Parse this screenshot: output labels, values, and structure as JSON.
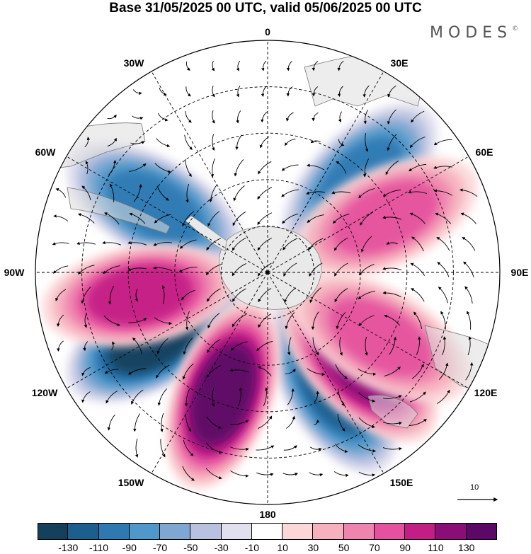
{
  "title": "Base 31/05/2025 00 UTC, valid 05/06/2025 00 UTC",
  "brand": "MODES",
  "brand_mark": "©",
  "longitude_labels": [
    "0",
    "30E",
    "60E",
    "90E",
    "120E",
    "150E",
    "180",
    "150W",
    "120W",
    "90W",
    "60W",
    "30W"
  ],
  "colorbar": {
    "ticks": [
      "-130",
      "-110",
      "-90",
      "-70",
      "-50",
      "-30",
      "-10",
      "10",
      "30",
      "50",
      "70",
      "90",
      "110",
      "130"
    ],
    "colors": [
      "#15405c",
      "#1c5f8e",
      "#2f79b3",
      "#4f98c9",
      "#7fa7d2",
      "#b8c1df",
      "#e1e0ee",
      "#ffffff",
      "#fbd7d9",
      "#f6b0be",
      "#ef85ae",
      "#e4519e",
      "#c21e85",
      "#8a0d78",
      "#5b0866"
    ]
  },
  "reference_vector": {
    "label": "10",
    "icon": "arrow-right-icon"
  },
  "anomaly_features": [
    {
      "sign": "negative",
      "level": -130,
      "near": "120W"
    },
    {
      "sign": "negative",
      "level": -110,
      "near": "150E"
    },
    {
      "sign": "negative",
      "level": -90,
      "near": "60W"
    },
    {
      "sign": "negative",
      "level": -90,
      "near": "45E"
    },
    {
      "sign": "positive",
      "level": 130,
      "near": "160W"
    },
    {
      "sign": "positive",
      "level": 110,
      "near": "135E"
    },
    {
      "sign": "positive",
      "level": 90,
      "near": "100W"
    },
    {
      "sign": "positive",
      "level": 70,
      "near": "65E"
    },
    {
      "sign": "positive",
      "level": 70,
      "near": "120E"
    }
  ]
}
